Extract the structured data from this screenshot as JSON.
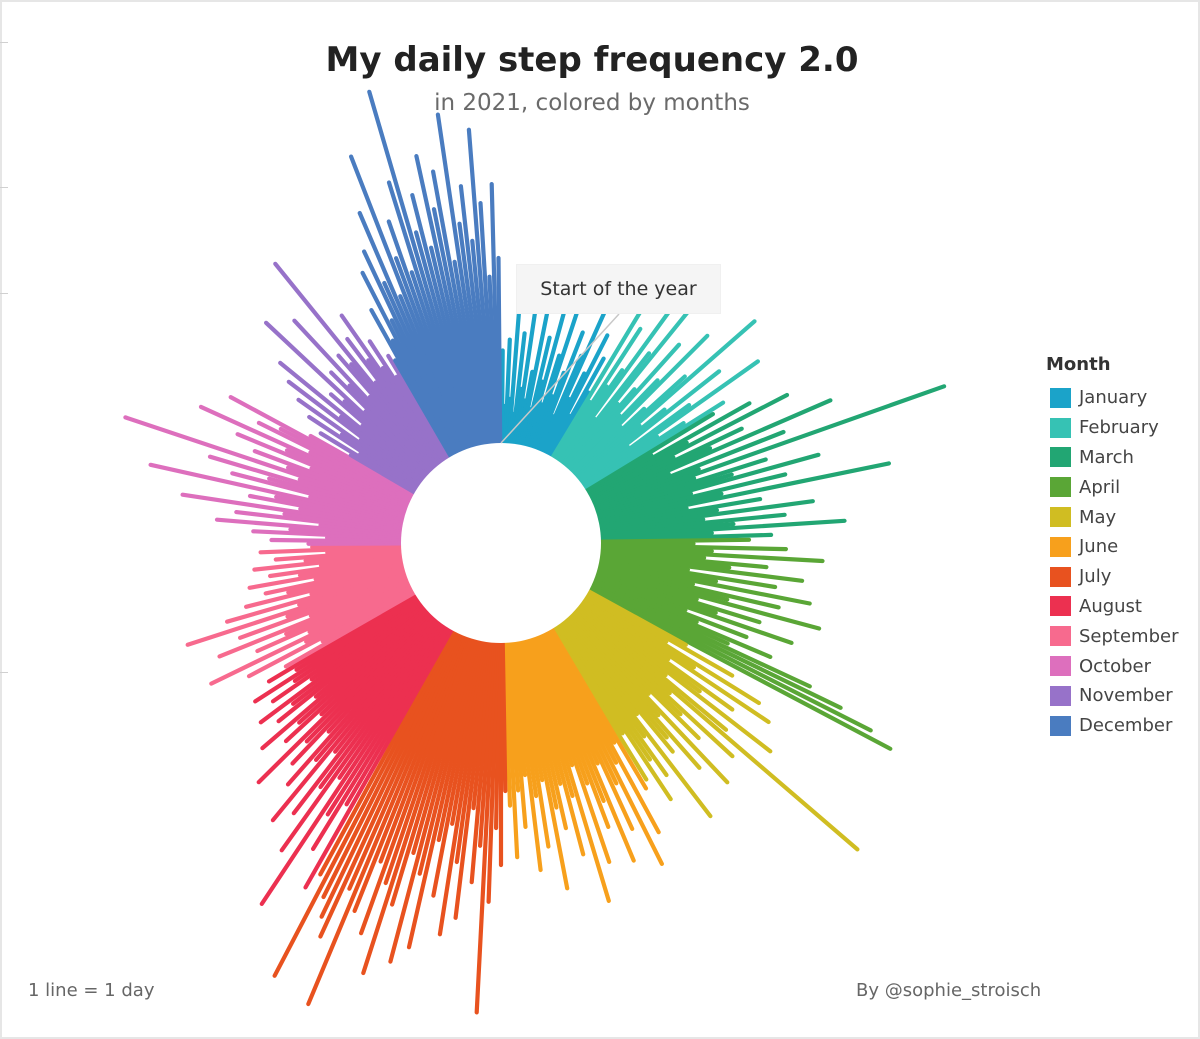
{
  "page": {
    "title": "My daily step frequency 2.0",
    "subtitle": "in 2021, colored by months",
    "footnote": "1 line = 1 day",
    "credit": "By @sophie_stroisch",
    "annotation": "Start of the year"
  },
  "chart_data": {
    "type": "radial-bar",
    "title": "My daily step frequency 2.0",
    "subtitle": "in 2021, colored by months",
    "legend_title": "Month",
    "legend_position": "right",
    "start_direction": "top",
    "direction": "clockwise",
    "days_per_bar": 1,
    "value_scale": "relative length, 0-1",
    "months": [
      {
        "name": "January",
        "color": "#1ba3c9",
        "values": [
          0.25,
          0.1,
          0.28,
          0.12,
          0.35,
          0.08,
          0.3,
          0.15,
          0.4,
          0.12,
          0.2,
          0.45,
          0.1,
          0.3,
          0.18,
          0.38,
          0.12,
          0.26,
          0.5,
          0.15,
          0.22,
          0.34,
          0.1,
          0.28,
          0.42,
          0.16,
          0.24,
          0.36,
          0.12,
          0.3,
          0.2
        ]
      },
      {
        "name": "February",
        "color": "#36c2b4",
        "values": [
          0.5,
          0.18,
          0.42,
          0.24,
          0.3,
          0.55,
          0.15,
          0.38,
          0.6,
          0.22,
          0.28,
          0.45,
          0.2,
          0.34,
          0.52,
          0.18,
          0.26,
          0.4,
          0.64,
          0.22,
          0.3,
          0.48,
          0.16,
          0.36,
          0.58,
          0.24,
          0.32,
          0.44
        ]
      },
      {
        "name": "March",
        "color": "#22a673",
        "values": [
          0.4,
          0.2,
          0.5,
          0.3,
          0.6,
          0.25,
          0.45,
          0.35,
          0.7,
          0.22,
          0.55,
          0.3,
          1.0,
          0.28,
          0.48,
          0.38,
          0.62,
          0.26,
          0.52,
          0.34,
          0.8,
          0.24,
          0.44,
          0.32,
          0.58,
          0.28,
          0.5,
          0.36,
          0.66,
          0.3,
          0.46
        ]
      },
      {
        "name": "April",
        "color": "#5aa636",
        "values": [
          0.4,
          0.25,
          0.5,
          0.3,
          0.6,
          0.28,
          0.45,
          0.35,
          0.55,
          0.24,
          0.48,
          0.32,
          0.58,
          0.26,
          0.5,
          0.36,
          0.62,
          0.28,
          0.46,
          0.34,
          0.56,
          0.26,
          0.44,
          0.3,
          0.52,
          0.4,
          0.65,
          0.75,
          0.85,
          0.92
        ]
      },
      {
        "name": "May",
        "color": "#d0bd22",
        "values": [
          0.3,
          0.45,
          0.25,
          0.55,
          0.35,
          0.6,
          0.28,
          0.5,
          0.4,
          0.65,
          0.3,
          0.52,
          1.0,
          0.34,
          0.58,
          0.4,
          0.48,
          0.3,
          0.62,
          0.36,
          0.54,
          0.42,
          0.46,
          0.32,
          0.66,
          0.38,
          0.5,
          0.44,
          0.56,
          0.34,
          0.48
        ]
      },
      {
        "name": "June",
        "color": "#f7a01c",
        "values": [
          0.5,
          0.35,
          0.62,
          0.4,
          0.7,
          0.45,
          0.58,
          0.38,
          0.66,
          0.48,
          0.55,
          0.42,
          0.64,
          0.36,
          0.74,
          0.44,
          0.6,
          0.4,
          0.52,
          0.46,
          0.68,
          0.38,
          0.56,
          0.42,
          0.62,
          0.36,
          0.5,
          0.4,
          0.58,
          0.44
        ]
      },
      {
        "name": "July",
        "color": "#e8521f",
        "values": [
          0.4,
          0.6,
          0.5,
          0.7,
          1.0,
          0.55,
          0.65,
          0.45,
          0.75,
          0.6,
          0.8,
          0.5,
          0.7,
          0.55,
          0.85,
          0.65,
          0.9,
          0.6,
          0.75,
          0.95,
          0.7,
          0.85,
          0.65,
          0.8,
          1.08,
          0.75,
          0.9,
          0.85,
          0.8,
          1.05,
          0.75
        ]
      },
      {
        "name": "August",
        "color": "#ec3050",
        "values": [
          0.8,
          0.55,
          0.7,
          0.6,
          0.9,
          0.5,
          0.75,
          0.55,
          0.65,
          0.45,
          0.7,
          0.5,
          0.6,
          0.42,
          0.55,
          0.48,
          0.65,
          0.4,
          0.52,
          0.46,
          0.58,
          0.38,
          0.5,
          0.44,
          0.54,
          0.36,
          0.48,
          0.4,
          0.52,
          0.38,
          0.46
        ]
      },
      {
        "name": "September",
        "color": "#f76a8e",
        "values": [
          0.4,
          0.28,
          0.5,
          0.32,
          0.6,
          0.3,
          0.45,
          0.36,
          0.55,
          0.28,
          0.48,
          0.34,
          0.62,
          0.3,
          0.5,
          0.26,
          0.44,
          0.32,
          0.38,
          0.24,
          0.42,
          0.28,
          0.36,
          0.22,
          0.4,
          0.26,
          0.34,
          0.2,
          0.38,
          0.24
        ]
      },
      {
        "name": "October",
        "color": "#dd6fbd",
        "values": [
          0.25,
          0.35,
          0.2,
          0.4,
          0.3,
          0.5,
          0.22,
          0.45,
          0.32,
          0.6,
          0.28,
          0.42,
          0.35,
          0.7,
          0.26,
          0.48,
          0.38,
          0.55,
          0.3,
          0.8,
          0.34,
          0.44,
          0.28,
          0.5,
          0.36,
          0.62,
          0.3,
          0.46,
          0.4,
          0.56,
          0.32
        ]
      },
      {
        "name": "November",
        "color": "#9772c9",
        "values": [
          0.2,
          0.3,
          0.18,
          0.35,
          0.25,
          0.4,
          0.2,
          0.45,
          0.28,
          0.5,
          0.22,
          0.34,
          0.3,
          0.6,
          0.24,
          0.38,
          0.32,
          0.55,
          0.26,
          0.4,
          0.36,
          0.7,
          0.28,
          0.42,
          0.34,
          0.48,
          0.3,
          0.38,
          0.26,
          0.32
        ]
      },
      {
        "name": "December",
        "color": "#4a7cc0",
        "values": [
          0.3,
          0.45,
          0.35,
          0.55,
          0.4,
          0.6,
          0.5,
          0.7,
          0.45,
          0.85,
          0.55,
          0.65,
          0.5,
          0.75,
          1.0,
          0.6,
          0.7,
          0.55,
          0.8,
          0.65,
          0.75,
          0.5,
          0.9,
          0.6,
          0.7,
          0.55,
          0.85,
          0.65,
          0.45,
          0.7,
          0.5
        ]
      }
    ]
  }
}
